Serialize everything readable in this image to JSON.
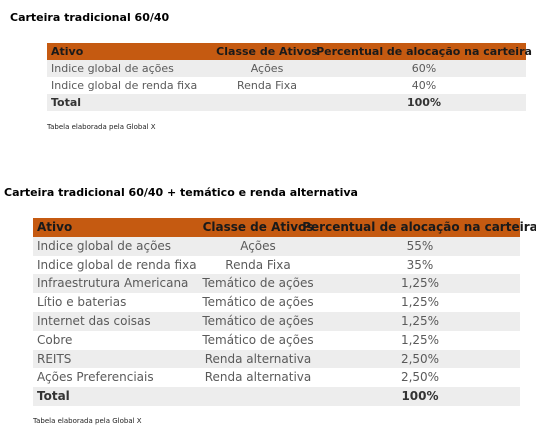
{
  "tables": [
    {
      "title": "Carteira tradicional 60/40",
      "columns": [
        "Ativo",
        "Classe de Ativos",
        "Percentual de alocação na carteira"
      ],
      "rows": [
        [
          "Indice global de ações",
          "Ações",
          "60%"
        ],
        [
          "Indice global de renda fixa",
          "Renda Fixa",
          "40%"
        ]
      ],
      "total": {
        "label": "Total",
        "value": "100%"
      },
      "caption": "Tabela elaborada pela Global X"
    },
    {
      "title": "Carteira tradicional 60/40 + temático e renda alternativa",
      "columns": [
        "Ativo",
        "Classe de Ativos",
        "Percentual de alocação na carteira"
      ],
      "rows": [
        [
          "Indice global de ações",
          "Ações",
          "55%"
        ],
        [
          "Indice global de renda fixa",
          "Renda Fixa",
          "35%"
        ],
        [
          "Infraestrutura Americana",
          "Temático de ações",
          "1,25%"
        ],
        [
          "Lítio e baterias",
          "Temático de ações",
          "1,25%"
        ],
        [
          "Internet das coisas",
          "Temático de ações",
          "1,25%"
        ],
        [
          "Cobre",
          "Temático de ações",
          "1,25%"
        ],
        [
          "REITS",
          "Renda alternativa",
          "2,50%"
        ],
        [
          "Ações Preferenciais",
          "Renda alternativa",
          "2,50%"
        ]
      ],
      "total": {
        "label": "Total",
        "value": "100%"
      },
      "caption": "Tabela elaborada pela Global X"
    }
  ]
}
